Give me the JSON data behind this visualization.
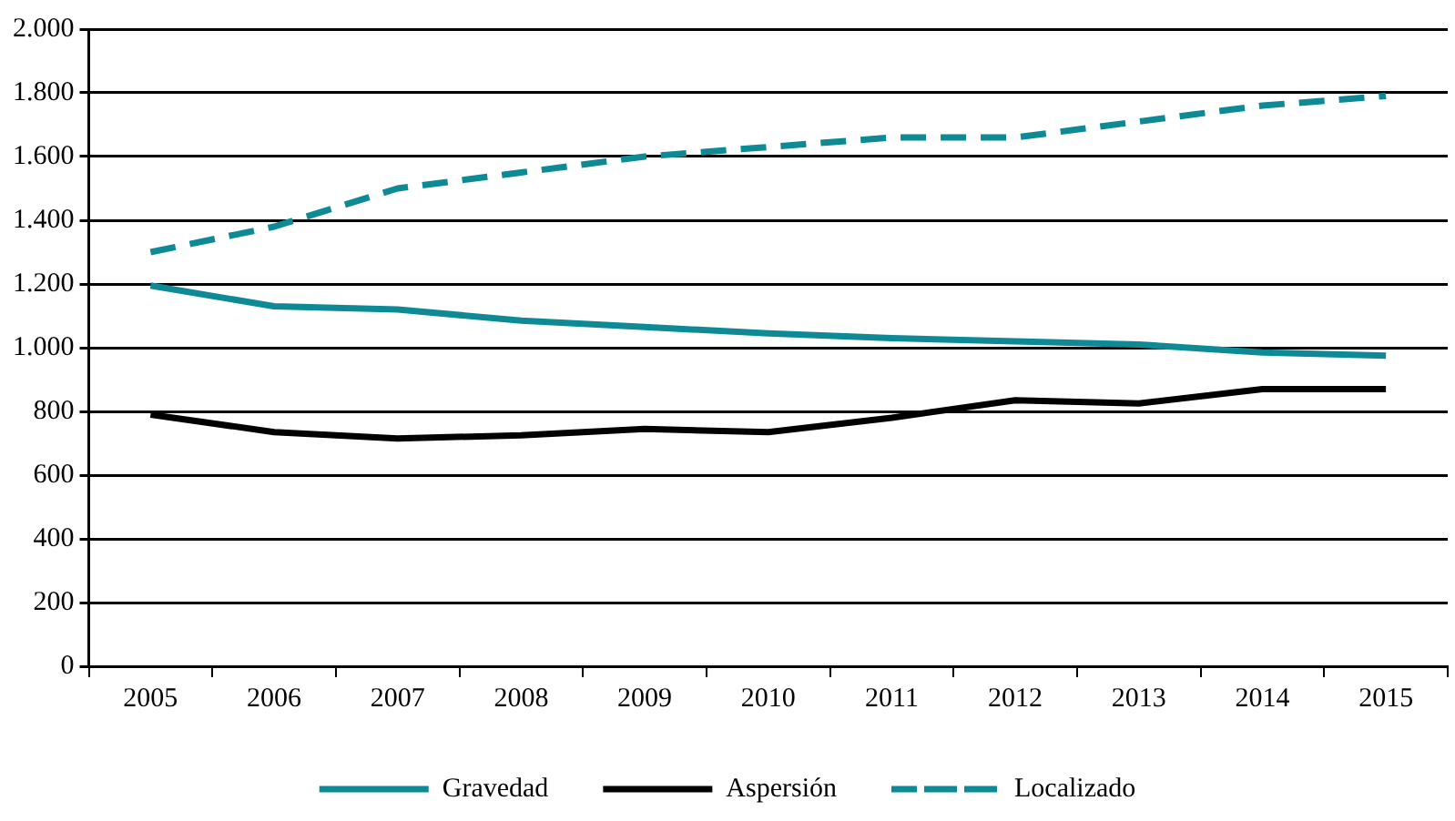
{
  "chart_data": {
    "type": "line",
    "categories": [
      "2005",
      "2006",
      "2007",
      "2008",
      "2009",
      "2010",
      "2011",
      "2012",
      "2013",
      "2014",
      "2015"
    ],
    "series": [
      {
        "name": "Gravedad",
        "color": "#0e8a96",
        "line_style": "solid",
        "values": [
          1195,
          1130,
          1120,
          1085,
          1065,
          1045,
          1030,
          1020,
          1010,
          985,
          975
        ]
      },
      {
        "name": "Aspersión",
        "color": "#000000",
        "line_style": "solid",
        "values": [
          790,
          735,
          715,
          725,
          745,
          735,
          780,
          835,
          825,
          870,
          870
        ]
      },
      {
        "name": "Localizado",
        "color": "#0e8a96",
        "line_style": "dashed",
        "values": [
          1300,
          1380,
          1500,
          1550,
          1600,
          1630,
          1660,
          1660,
          1710,
          1760,
          1790
        ]
      }
    ],
    "ylim": [
      0,
      2000
    ],
    "yticks": [
      {
        "value": 0,
        "label": "0"
      },
      {
        "value": 200,
        "label": "200"
      },
      {
        "value": 400,
        "label": "400"
      },
      {
        "value": 600,
        "label": "600"
      },
      {
        "value": 800,
        "label": "800"
      },
      {
        "value": 1000,
        "label": "1.000"
      },
      {
        "value": 1200,
        "label": "1.200"
      },
      {
        "value": 1400,
        "label": "1.400"
      },
      {
        "value": 1600,
        "label": "1.600"
      },
      {
        "value": 1800,
        "label": "1.800"
      },
      {
        "value": 2000,
        "label": "2.000"
      }
    ],
    "grid": "y",
    "legend": "bottom",
    "marker": "none"
  }
}
